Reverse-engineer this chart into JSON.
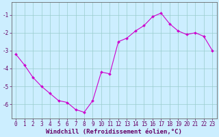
{
  "xlabel": "Windchill (Refroidissement éolien,°C)",
  "x_data": [
    0,
    1,
    2,
    3,
    4,
    5,
    6,
    7,
    8,
    9,
    10,
    11,
    12,
    13,
    14,
    15,
    16,
    17,
    18,
    19,
    20,
    21,
    22,
    23
  ],
  "y_data": [
    -3.2,
    -3.8,
    -4.5,
    -5.0,
    -5.4,
    -5.8,
    -5.9,
    -6.3,
    -6.45,
    -5.8,
    -4.2,
    -4.3,
    -2.5,
    -2.3,
    -1.9,
    -1.6,
    -1.1,
    -0.9,
    -1.5,
    -1.9,
    -2.1,
    -2.0,
    -2.2,
    -3.0
  ],
  "line_color": "#cc00cc",
  "marker_color": "#cc00cc",
  "bg_color": "#cceeff",
  "grid_color": "#99cccc",
  "axis_color": "#333333",
  "tick_color": "#660066",
  "spine_color": "#666666",
  "xlim": [
    -0.5,
    23.5
  ],
  "ylim": [
    -6.8,
    -0.3
  ],
  "yticks": [
    -6,
    -5,
    -4,
    -3,
    -2,
    -1
  ],
  "xticks": [
    0,
    1,
    2,
    3,
    4,
    5,
    6,
    7,
    8,
    9,
    10,
    11,
    12,
    13,
    14,
    15,
    16,
    17,
    18,
    19,
    20,
    21,
    22,
    23
  ],
  "figsize": [
    3.2,
    2.0
  ],
  "dpi": 100,
  "label_fontsize": 6.5,
  "tick_fontsize": 5.5
}
